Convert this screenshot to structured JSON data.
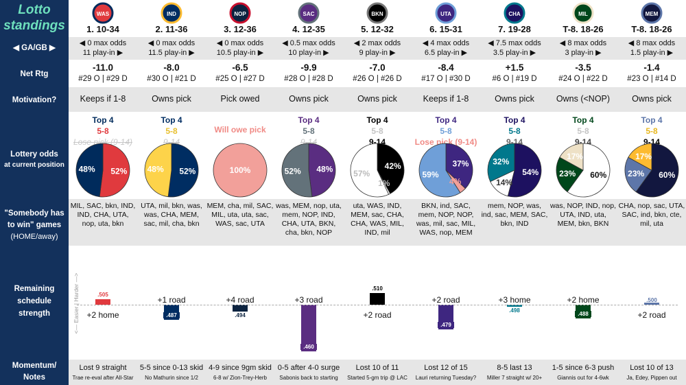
{
  "sidebar": {
    "title_line1": "Lotto",
    "title_line2": "standings",
    "ga_gb": "◀ GA/GB ▶",
    "net_rtg": "Net Rtg",
    "motivation": "Motivation?",
    "lottery_odds": "Lottery odds",
    "lottery_odds_sub": "at current position",
    "somebody_line1": "\"Somebody has",
    "somebody_line2": "to win\" games",
    "somebody_line3": "(HOME/away)",
    "remaining_line1": "Remaining",
    "remaining_line2": "schedule",
    "remaining_line3": "strength",
    "momentum_line1": "Momentum/",
    "momentum_line2": "Notes"
  },
  "axis_text": "<— Easier | Harder —>",
  "colors": {
    "sidebar": "#13315c",
    "title": "#6ee0bd",
    "band": "#e6e6e6"
  },
  "chart_data": {
    "type": "bar",
    "title": "Remaining schedule strength",
    "baseline": 0.5,
    "categories": [
      "WAS",
      "IND",
      "NOP",
      "SAC",
      "BKN",
      "UTA",
      "CHA",
      "MIL",
      "MEM"
    ],
    "values": [
      0.505,
      0.487,
      0.494,
      0.46,
      0.51,
      0.479,
      0.498,
      0.488,
      0.5
    ],
    "value_labels": [
      ".505",
      ".487",
      ".494",
      ".460",
      ".510",
      ".479",
      ".498",
      ".488",
      ".500"
    ]
  },
  "teams": [
    {
      "abbr": "WAS",
      "logo": "wizards-logo",
      "color": "#e03a3e",
      "color2": "#002b5c",
      "rank": "1. 10-34",
      "odds1": "◀ 0 max odds",
      "odds2": "11 play-in ▶",
      "net": "-11.0",
      "net_rank": "#29 O | #29 D",
      "motivation": "Keeps if 1-8",
      "tiers": [
        {
          "t": "Top 4",
          "s": "",
          "c": "#002b5c"
        },
        {
          "t": "5-8",
          "s": "",
          "c": "#e03a3e"
        },
        {
          "t": "Lose pick (9-14)",
          "s": "struck",
          "c": ""
        }
      ],
      "pie": [
        {
          "v": 52,
          "label": "52%",
          "color": "#e03a3e",
          "tc": "#ffffff"
        },
        {
          "v": 48,
          "label": "48%",
          "color": "#002b5c",
          "tc": "#ffffff"
        }
      ],
      "sw": [
        "MIL, SAC, bkn, IND,",
        "IND, CHA, UTA,",
        "nop, uta, bkn"
      ],
      "sched_label": "+2 home",
      "sched_pos": "below",
      "bar_color": "#e03a3e",
      "momentum": "Lost 9 straight",
      "note": "Trae re-eval after All-Star"
    },
    {
      "abbr": "IND",
      "logo": "pacers-logo",
      "color": "#002d62",
      "color2": "#fdbb30",
      "rank": "2. 11-36",
      "odds1": "◀ 0 max odds",
      "odds2": "11.5 play-in ▶",
      "net": "-8.0",
      "net_rank": "#30 O | #21 D",
      "motivation": "Owns pick",
      "tiers": [
        {
          "t": "Top 4",
          "s": "",
          "c": "#002d62"
        },
        {
          "t": "5-8",
          "s": "",
          "c": "#e8c030"
        },
        {
          "t": "9-14",
          "s": "struck",
          "c": ""
        }
      ],
      "pie": [
        {
          "v": 52,
          "label": "52%",
          "color": "#002d62",
          "tc": "#ffffff"
        },
        {
          "v": 48,
          "label": "48%",
          "color": "#fdd34a",
          "tc": "#ffffff"
        }
      ],
      "sw": [
        "UTA, mil, bkn, was,",
        "was, CHA, MEM,",
        "sac, mil, cha, bkn"
      ],
      "sched_label": "+1 road",
      "sched_pos": "above",
      "bar_color": "#002d62",
      "momentum": "5-5 since 0-13 skid",
      "note": "No Mathurin since 1/2"
    },
    {
      "abbr": "NOP",
      "logo": "pelicans-logo",
      "color": "#0c2340",
      "color2": "#c8102e",
      "rank": "3. 12-36",
      "odds1": "◀ 0 max odds",
      "odds2": "10.5 play-in ▶",
      "net": "-6.5",
      "net_rank": "#25 O | #27 D",
      "motivation": "Pick owed",
      "tiers": [
        {
          "t": "Will owe pick",
          "s": "",
          "c": "#f08a85"
        }
      ],
      "pie": [
        {
          "v": 100,
          "label": "100%",
          "color": "#f2a09a",
          "tc": "#ffffff"
        }
      ],
      "sw": [
        "MEM, cha, mil, SAC,",
        "MIL, uta, uta, sac,",
        "WAS, sac, UTA"
      ],
      "sched_label": "+4 road",
      "sched_pos": "above",
      "bar_color": "#0c2340",
      "momentum": "4-9 since 9gm skid",
      "note": "6-8 w/ Zion-Trey-Herb"
    },
    {
      "abbr": "SAC",
      "logo": "kings-logo",
      "color": "#5a2d81",
      "color2": "#63727a",
      "rank": "4. 12-35",
      "odds1": "◀ 0.5 max odds",
      "odds2": "10 play-in ▶",
      "net": "-9.9",
      "net_rank": "#28 O | #28 D",
      "motivation": "Owns pick",
      "tiers": [
        {
          "t": "Top 4",
          "s": "",
          "c": "#5a2d81"
        },
        {
          "t": "5-8",
          "s": "",
          "c": "#63727a"
        },
        {
          "t": "9-14",
          "s": "struck",
          "c": ""
        }
      ],
      "pie": [
        {
          "v": 48,
          "label": "48%",
          "color": "#5a2d81",
          "tc": "#ffffff"
        },
        {
          "v": 52,
          "label": "52%",
          "color": "#63727a",
          "tc": "#ffffff"
        }
      ],
      "sw": [
        "was, MEM, nop, uta,",
        "mem, NOP, IND,",
        "CHA, UTA, BKN,",
        "cha, bkn, NOP"
      ],
      "sched_label": "+3 road",
      "sched_pos": "above",
      "bar_color": "#5a2d81",
      "momentum": "0-5 after 4-0 surge",
      "note": "Sabonis back to starting"
    },
    {
      "abbr": "BKN",
      "logo": "nets-logo",
      "color": "#000000",
      "color2": "#777777",
      "rank": "5. 12-32",
      "odds1": "◀ 2 max odds",
      "odds2": "9 play-in ▶",
      "net": "-7.0",
      "net_rank": "#26 O | #26 D",
      "motivation": "Owns pick",
      "tiers": [
        {
          "t": "Top 4",
          "s": "",
          "c": "#000000"
        },
        {
          "t": "5-8",
          "s": "faded",
          "c": ""
        },
        {
          "t": "9-14",
          "s": "",
          "c": "#000000"
        }
      ],
      "pie": [
        {
          "v": 42,
          "label": "42%",
          "color": "#000000",
          "tc": "#ffffff"
        },
        {
          "v": 1,
          "label": "1%",
          "color": "#ffffff",
          "tc": "#bbbbbb"
        },
        {
          "v": 57,
          "label": "57%",
          "color": "#ffffff",
          "tc": "#bbbbbb"
        }
      ],
      "sw": [
        "uta, WAS, IND,",
        "MEM, sac, CHA,",
        "CHA, WAS, MIL,",
        "IND, mil"
      ],
      "sched_label": "+2 road",
      "sched_pos": "below",
      "bar_color": "#000000",
      "momentum": "Lost 10 of 11",
      "note": "Started 5-gm trip @ LAC"
    },
    {
      "abbr": "UTA",
      "logo": "jazz-logo",
      "color": "#3e2680",
      "color2": "#6f9fd8",
      "rank": "6. 15-31",
      "odds1": "◀ 4 max odds",
      "odds2": "6.5 play-in ▶",
      "net": "-8.4",
      "net_rank": "#17 O | #30 D",
      "motivation": "Keeps if 1-8",
      "tiers": [
        {
          "t": "Top 4",
          "s": "",
          "c": "#3e2680"
        },
        {
          "t": "5-8",
          "s": "",
          "c": "#6f9fd8"
        },
        {
          "t": "Lose pick (9-14)",
          "s": "",
          "c": "#f08a85"
        }
      ],
      "pie": [
        {
          "v": 37,
          "label": "37%",
          "color": "#3e2680",
          "tc": "#ffffff"
        },
        {
          "v": 4,
          "label": "4%",
          "color": "#f2a09a",
          "tc": "#f2a09a"
        },
        {
          "v": 59,
          "label": "59%",
          "color": "#6f9fd8",
          "tc": "#ffffff"
        }
      ],
      "sw": [
        "BKN, ind, SAC,",
        "mem, NOP, NOP,",
        "was, mil, sac, MIL,",
        "WAS, nop, MEM"
      ],
      "sched_label": "+2 road",
      "sched_pos": "above",
      "bar_color": "#3e2680",
      "momentum": "Lost 12 of 15",
      "note": "Lauri returning Tuesday?"
    },
    {
      "abbr": "CHA",
      "logo": "hornets-logo",
      "color": "#1d1160",
      "color2": "#00788c",
      "rank": "7. 19-28",
      "odds1": "◀ 7.5 max odds",
      "odds2": "3.5 play-in ▶",
      "net": "+1.5",
      "net_rank": "#6 O | #19 D",
      "motivation": "Owns pick",
      "tiers": [
        {
          "t": "Top 4",
          "s": "",
          "c": "#1d1160"
        },
        {
          "t": "5-8",
          "s": "",
          "c": "#00788c"
        },
        {
          "t": "9-14",
          "s": "",
          "c": "#666666"
        }
      ],
      "pie": [
        {
          "v": 54,
          "label": "54%",
          "color": "#1d1160",
          "tc": "#ffffff"
        },
        {
          "v": 14,
          "label": "14%",
          "color": "#ffffff",
          "tc": "#333333"
        },
        {
          "v": 32,
          "label": "32%",
          "color": "#00788c",
          "tc": "#ffffff"
        }
      ],
      "sw": [
        "mem, NOP, was,",
        "ind, sac, MEM, SAC,",
        "bkn, IND"
      ],
      "sched_label": "+3 home",
      "sched_pos": "above",
      "bar_color": "#00788c",
      "momentum": "8-5 last 13",
      "note": "Miller 7 straight w/ 20+"
    },
    {
      "abbr": "MIL",
      "logo": "bucks-logo",
      "color": "#00471b",
      "color2": "#eee1c6",
      "rank": "T-8. 18-26",
      "odds1": "◀ 8 max odds",
      "odds2": "3 play-in ▶",
      "net": "-3.5",
      "net_rank": "#24 O | #22 D",
      "motivation": "Owns (<NOP)",
      "tiers": [
        {
          "t": "Top 4",
          "s": "",
          "c": "#00471b"
        },
        {
          "t": "5-8",
          "s": "faded",
          "c": ""
        },
        {
          "t": "9-14",
          "s": "",
          "c": "#444444"
        }
      ],
      "pie": [
        {
          "v": 60,
          "label": "60%",
          "color": "#ffffff",
          "tc": "#111111"
        },
        {
          "v": 23,
          "label": "23%",
          "color": "#00471b",
          "tc": "#ffffff"
        },
        {
          "v": 17,
          "label": "17%",
          "color": "#eee1c6",
          "tc": "#ffffff"
        }
      ],
      "sw": [
        "was, NOP, IND, nop,",
        "UTA, IND, uta,",
        "MEM, bkn, BKN"
      ],
      "sched_label": "+2 home",
      "sched_pos": "above",
      "bar_color": "#00471b",
      "momentum": "1-5 since 6-3 push",
      "note": "Giannis out for 4-6wk"
    },
    {
      "abbr": "MEM",
      "logo": "grizzlies-logo",
      "color": "#12173f",
      "color2": "#5d76a9",
      "rank": "T-8. 18-26",
      "odds1": "◀ 8 max odds",
      "odds2": "1.5 play-in ▶",
      "net": "-1.4",
      "net_rank": "#23 O | #14 D",
      "motivation": "Owns pick",
      "tiers": [
        {
          "t": "Top 4",
          "s": "",
          "c": "#5d76a9"
        },
        {
          "t": "5-8",
          "s": "",
          "c": "#e8b820"
        },
        {
          "t": "9-14",
          "s": "",
          "c": "#000000"
        }
      ],
      "pie": [
        {
          "v": 60,
          "label": "60%",
          "color": "#12173f",
          "tc": "#ffffff"
        },
        {
          "v": 23,
          "label": "23%",
          "color": "#5d76a9",
          "tc": "#ffffff"
        },
        {
          "v": 17,
          "label": "17%",
          "color": "#fdbb30",
          "tc": "#ffffff"
        }
      ],
      "sw": [
        "CHA, nop, sac, UTA,",
        "SAC, ind, bkn, cte,",
        "mil, uta"
      ],
      "sched_label": "+2 road",
      "sched_pos": "below",
      "bar_color": "#5d76a9",
      "momentum": "Lost 10 of 13",
      "note": "Ja, Edey, Pippen out"
    }
  ]
}
